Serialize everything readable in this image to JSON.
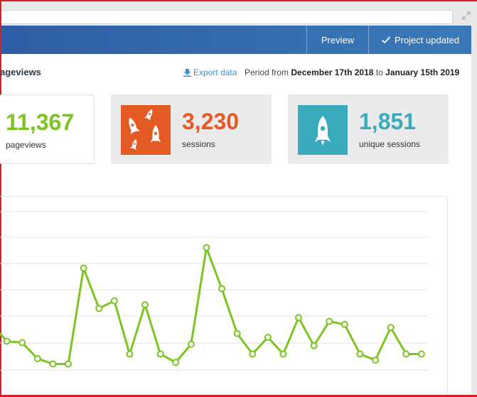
{
  "toolbar": {
    "preview_label": "Preview",
    "project_status_label": "Project updated"
  },
  "header": {
    "section_title": "ageviews",
    "export_label": "Export data",
    "period_prefix": "Period from",
    "period_start": "December 17th 2018",
    "period_to": "to",
    "period_end": "January 15th 2019"
  },
  "stats": [
    {
      "value": "11,367",
      "label": "pageviews",
      "color": "#7cc424",
      "icon": "none"
    },
    {
      "value": "3,230",
      "label": "sessions",
      "color": "#e35a24",
      "icon": "rockets-icon"
    },
    {
      "value": "1,851",
      "label": "unique sessions",
      "color": "#3aabbc",
      "icon": "rocket-icon"
    }
  ],
  "colors": {
    "topbar": "#3368ab",
    "line": "#7cc424",
    "sessions": "#e35a24",
    "unique": "#3aabbc"
  },
  "chart_data": {
    "type": "line",
    "title": "",
    "xlabel": "",
    "ylabel": "",
    "grid": true,
    "y_axis_labels_visible": false,
    "series": [
      {
        "values": [
          6,
          3.8,
          3.6,
          1.5,
          0.8,
          0.8,
          13.4,
          8.1,
          9.1,
          2.1,
          8.6,
          2.1,
          1,
          3.4,
          16.1,
          10.7,
          4.8,
          2.1,
          4.3,
          2.1,
          6.9,
          3.2,
          6.4,
          6,
          2.1,
          1.3,
          5.6,
          2.1,
          2.1
        ]
      }
    ]
  }
}
